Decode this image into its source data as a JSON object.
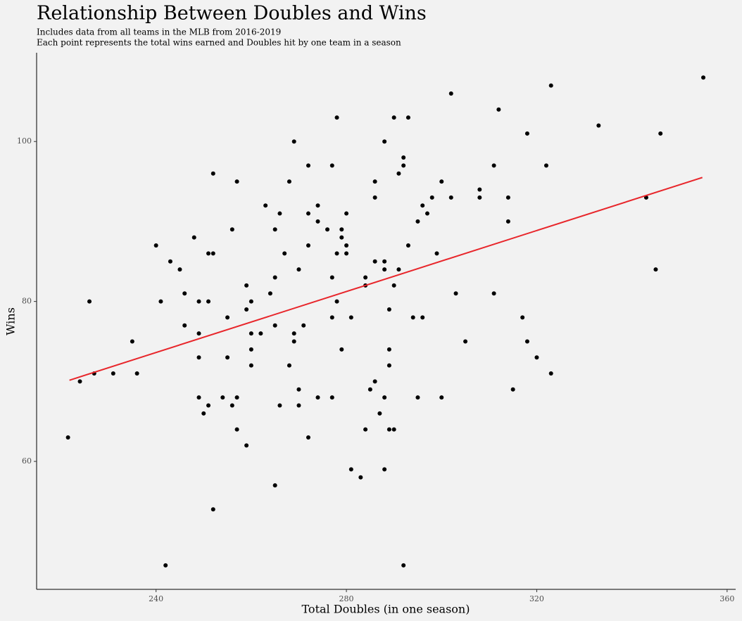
{
  "chart_data": {
    "type": "scatter",
    "title": "Relationship Between Doubles and Wins",
    "subtitle": [
      "Includes data from all teams in the MLB from 2016-2019",
      "Each point represents the total wins earned and Doubles hit by one team in a season"
    ],
    "x_label": "Total Doubles (in one season)",
    "y_label": "Wins",
    "color": "#000000",
    "x": [
      221.5,
      224,
      226,
      227,
      231,
      235,
      236,
      240,
      241,
      242,
      243,
      245,
      246,
      246,
      248,
      249,
      249,
      249,
      249,
      250,
      251,
      251,
      251,
      252,
      252,
      252,
      254,
      255,
      255,
      256,
      256,
      257,
      257,
      257,
      259,
      259,
      259,
      260,
      260,
      260,
      260,
      262,
      263,
      264,
      265,
      265,
      265,
      265,
      266,
      266,
      267,
      268,
      268,
      269,
      269,
      269,
      270,
      270,
      270,
      271,
      272,
      272,
      272,
      272,
      274,
      274,
      274,
      276,
      277,
      277,
      277,
      277,
      278,
      278,
      278,
      279,
      279,
      279,
      280,
      280,
      280,
      281,
      281,
      283,
      284,
      284,
      284,
      285,
      286,
      286,
      286,
      286,
      287,
      288,
      288,
      288,
      288,
      288,
      289,
      289,
      289,
      289,
      290,
      290,
      290,
      291,
      291,
      292,
      292,
      292,
      293,
      293,
      294,
      295,
      295,
      296,
      296,
      297,
      298,
      299,
      300,
      300,
      302,
      302,
      303,
      305,
      308,
      308,
      311,
      311,
      312,
      314,
      314,
      315,
      317,
      318,
      318,
      320,
      322,
      323,
      323,
      333,
      343,
      345,
      346,
      355
    ],
    "values": [
      63,
      70,
      80,
      71,
      71,
      75,
      71,
      87,
      80,
      47,
      85,
      84,
      81,
      77,
      88,
      80,
      76,
      73,
      68,
      66,
      67,
      86,
      80,
      86,
      96,
      54,
      68,
      73,
      78,
      89,
      67,
      68,
      64,
      95,
      82,
      79,
      62,
      80,
      76,
      74,
      72,
      76,
      92,
      81,
      89,
      83,
      77,
      57,
      91,
      67,
      86,
      95,
      72,
      76,
      75,
      100,
      69,
      67,
      84,
      77,
      97,
      91,
      87,
      63,
      68,
      92,
      90,
      89,
      97,
      83,
      78,
      68,
      80,
      86,
      103,
      89,
      74,
      88,
      87,
      86,
      91,
      78,
      59,
      58,
      83,
      82,
      64,
      69,
      95,
      85,
      93,
      70,
      66,
      85,
      84,
      100,
      68,
      59,
      74,
      79,
      72,
      64,
      82,
      103,
      64,
      96,
      84,
      47,
      98,
      97,
      103,
      87,
      78,
      90,
      68,
      92,
      78,
      91,
      93,
      86,
      95,
      68,
      106,
      93,
      81,
      75,
      94,
      93,
      97,
      81,
      104,
      93,
      90,
      69,
      78,
      101,
      75,
      73,
      97,
      107,
      71,
      102,
      93,
      84,
      101,
      108
    ],
    "trend_line": {
      "color": "#e8262b",
      "x": [
        221.8,
        354.8
      ],
      "y": [
        70.15,
        95.5
      ]
    },
    "xlim": [
      214.9,
      361.8
    ],
    "ylim": [
      44,
      111.1
    ],
    "xticks": [
      240,
      280,
      320,
      360
    ],
    "yticks": [
      60,
      80,
      100
    ],
    "grid": false
  }
}
